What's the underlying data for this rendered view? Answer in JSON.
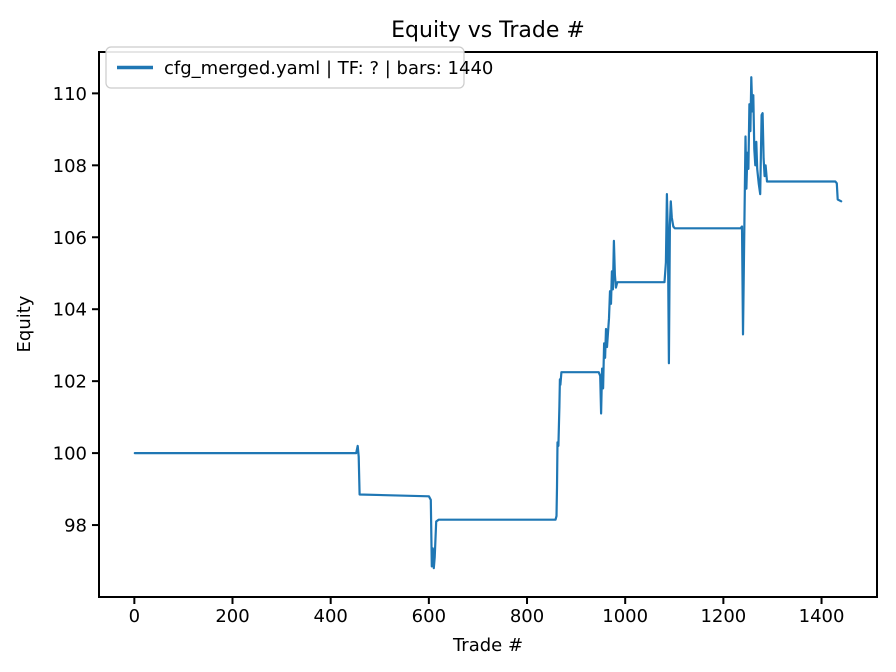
{
  "chart_data": {
    "type": "line",
    "title": "Equity vs Trade #",
    "xlabel": "Trade #",
    "ylabel": "Equity",
    "xlim": [
      -72,
      1513
    ],
    "ylim": [
      96.0,
      111.15
    ],
    "xticks": [
      0,
      200,
      400,
      600,
      800,
      1000,
      1200,
      1400
    ],
    "yticks": [
      98,
      100,
      102,
      104,
      106,
      108,
      110
    ],
    "grid": false,
    "legend": {
      "position": "upper left",
      "border_color": "#cccccc",
      "background": "#ffffff"
    },
    "axis_color": "#000000",
    "series": [
      {
        "name": "cfg_merged.yaml | TF: ? | bars: 1440",
        "color": "#1f77b4",
        "points": [
          [
            1,
            100
          ],
          [
            452,
            100
          ],
          [
            455,
            100.2
          ],
          [
            457,
            99.9
          ],
          [
            459,
            98.85
          ],
          [
            600,
            98.8
          ],
          [
            604,
            98.7
          ],
          [
            606,
            96.85
          ],
          [
            608,
            97.35
          ],
          [
            610,
            96.8
          ],
          [
            612,
            97.1
          ],
          [
            615,
            98.1
          ],
          [
            620,
            98.15
          ],
          [
            858,
            98.15
          ],
          [
            860,
            98.25
          ],
          [
            861,
            99.05
          ],
          [
            862,
            100.3
          ],
          [
            864,
            100.2
          ],
          [
            866,
            101.3
          ],
          [
            867,
            102.05
          ],
          [
            868,
            101.9
          ],
          [
            870,
            102.25
          ],
          [
            946,
            102.25
          ],
          [
            949,
            102.15
          ],
          [
            951,
            101.1
          ],
          [
            953,
            102.35
          ],
          [
            955,
            101.8
          ],
          [
            957,
            103.05
          ],
          [
            959,
            102.65
          ],
          [
            961,
            103.45
          ],
          [
            963,
            102.95
          ],
          [
            965,
            103.35
          ],
          [
            967,
            103.75
          ],
          [
            969,
            104.5
          ],
          [
            971,
            104.15
          ],
          [
            973,
            105.05
          ],
          [
            975,
            104.55
          ],
          [
            977,
            105.9
          ],
          [
            979,
            104.95
          ],
          [
            981,
            104.6
          ],
          [
            984,
            104.75
          ],
          [
            1080,
            104.75
          ],
          [
            1083,
            105.3
          ],
          [
            1085,
            107.2
          ],
          [
            1087,
            106.0
          ],
          [
            1089,
            102.5
          ],
          [
            1091,
            106.35
          ],
          [
            1093,
            107.0
          ],
          [
            1095,
            106.55
          ],
          [
            1098,
            106.3
          ],
          [
            1101,
            106.25
          ],
          [
            1235,
            106.25
          ],
          [
            1238,
            106.3
          ],
          [
            1240,
            103.3
          ],
          [
            1243,
            106.6
          ],
          [
            1245,
            108.8
          ],
          [
            1247,
            107.35
          ],
          [
            1249,
            108.35
          ],
          [
            1251,
            107.9
          ],
          [
            1253,
            109.7
          ],
          [
            1255,
            108.95
          ],
          [
            1257,
            110.45
          ],
          [
            1259,
            109.5
          ],
          [
            1261,
            109.95
          ],
          [
            1263,
            108.45
          ],
          [
            1265,
            108.0
          ],
          [
            1267,
            108.65
          ],
          [
            1269,
            107.9
          ],
          [
            1272,
            107.5
          ],
          [
            1275,
            107.2
          ],
          [
            1278,
            109.4
          ],
          [
            1280,
            109.45
          ],
          [
            1282,
            108.2
          ],
          [
            1284,
            107.7
          ],
          [
            1286,
            108.0
          ],
          [
            1289,
            107.55
          ],
          [
            1428,
            107.55
          ],
          [
            1431,
            107.5
          ],
          [
            1433,
            107.05
          ],
          [
            1440,
            107.0
          ]
        ]
      }
    ]
  }
}
